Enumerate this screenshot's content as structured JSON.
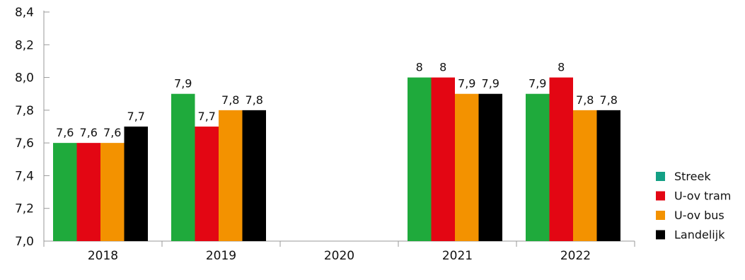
{
  "chart_data": {
    "type": "bar",
    "categories": [
      "2018",
      "2019",
      "2020",
      "2021",
      "2022"
    ],
    "series": [
      {
        "name": "Streek",
        "color": "#1faa3c",
        "legend_color": "#14a085",
        "values": [
          7.6,
          7.9,
          null,
          8.0,
          7.9
        ],
        "labels": [
          "7,6",
          "7,9",
          "",
          "8",
          "7,9"
        ]
      },
      {
        "name": "U-ov tram",
        "color": "#e30613",
        "legend_color": "#e30613",
        "values": [
          7.6,
          7.7,
          null,
          8.0,
          8.0
        ],
        "labels": [
          "7,6",
          "7,7",
          "",
          "8",
          "8"
        ]
      },
      {
        "name": "U-ov bus",
        "color": "#f39200",
        "legend_color": "#f39200",
        "values": [
          7.6,
          7.8,
          null,
          7.9,
          7.8
        ],
        "labels": [
          "7,6",
          "7,8",
          "",
          "7,9",
          "7,8"
        ]
      },
      {
        "name": "Landelijk",
        "color": "#000000",
        "legend_color": "#000000",
        "values": [
          7.7,
          7.8,
          null,
          7.9,
          7.8
        ],
        "labels": [
          "7,7",
          "7,8",
          "",
          "7,9",
          "7,8"
        ]
      }
    ],
    "yticks": [
      7.0,
      7.2,
      7.4,
      7.6,
      7.8,
      8.0,
      8.2,
      8.4
    ],
    "ytick_labels": [
      "7,0",
      "7,2",
      "7,4",
      "7,6",
      "7,8",
      "8,0",
      "8,2",
      "8,4"
    ],
    "ylim": [
      7.0,
      8.4
    ],
    "title": "",
    "xlabel": "",
    "ylabel": "",
    "grid": false,
    "legend_position": "right"
  }
}
